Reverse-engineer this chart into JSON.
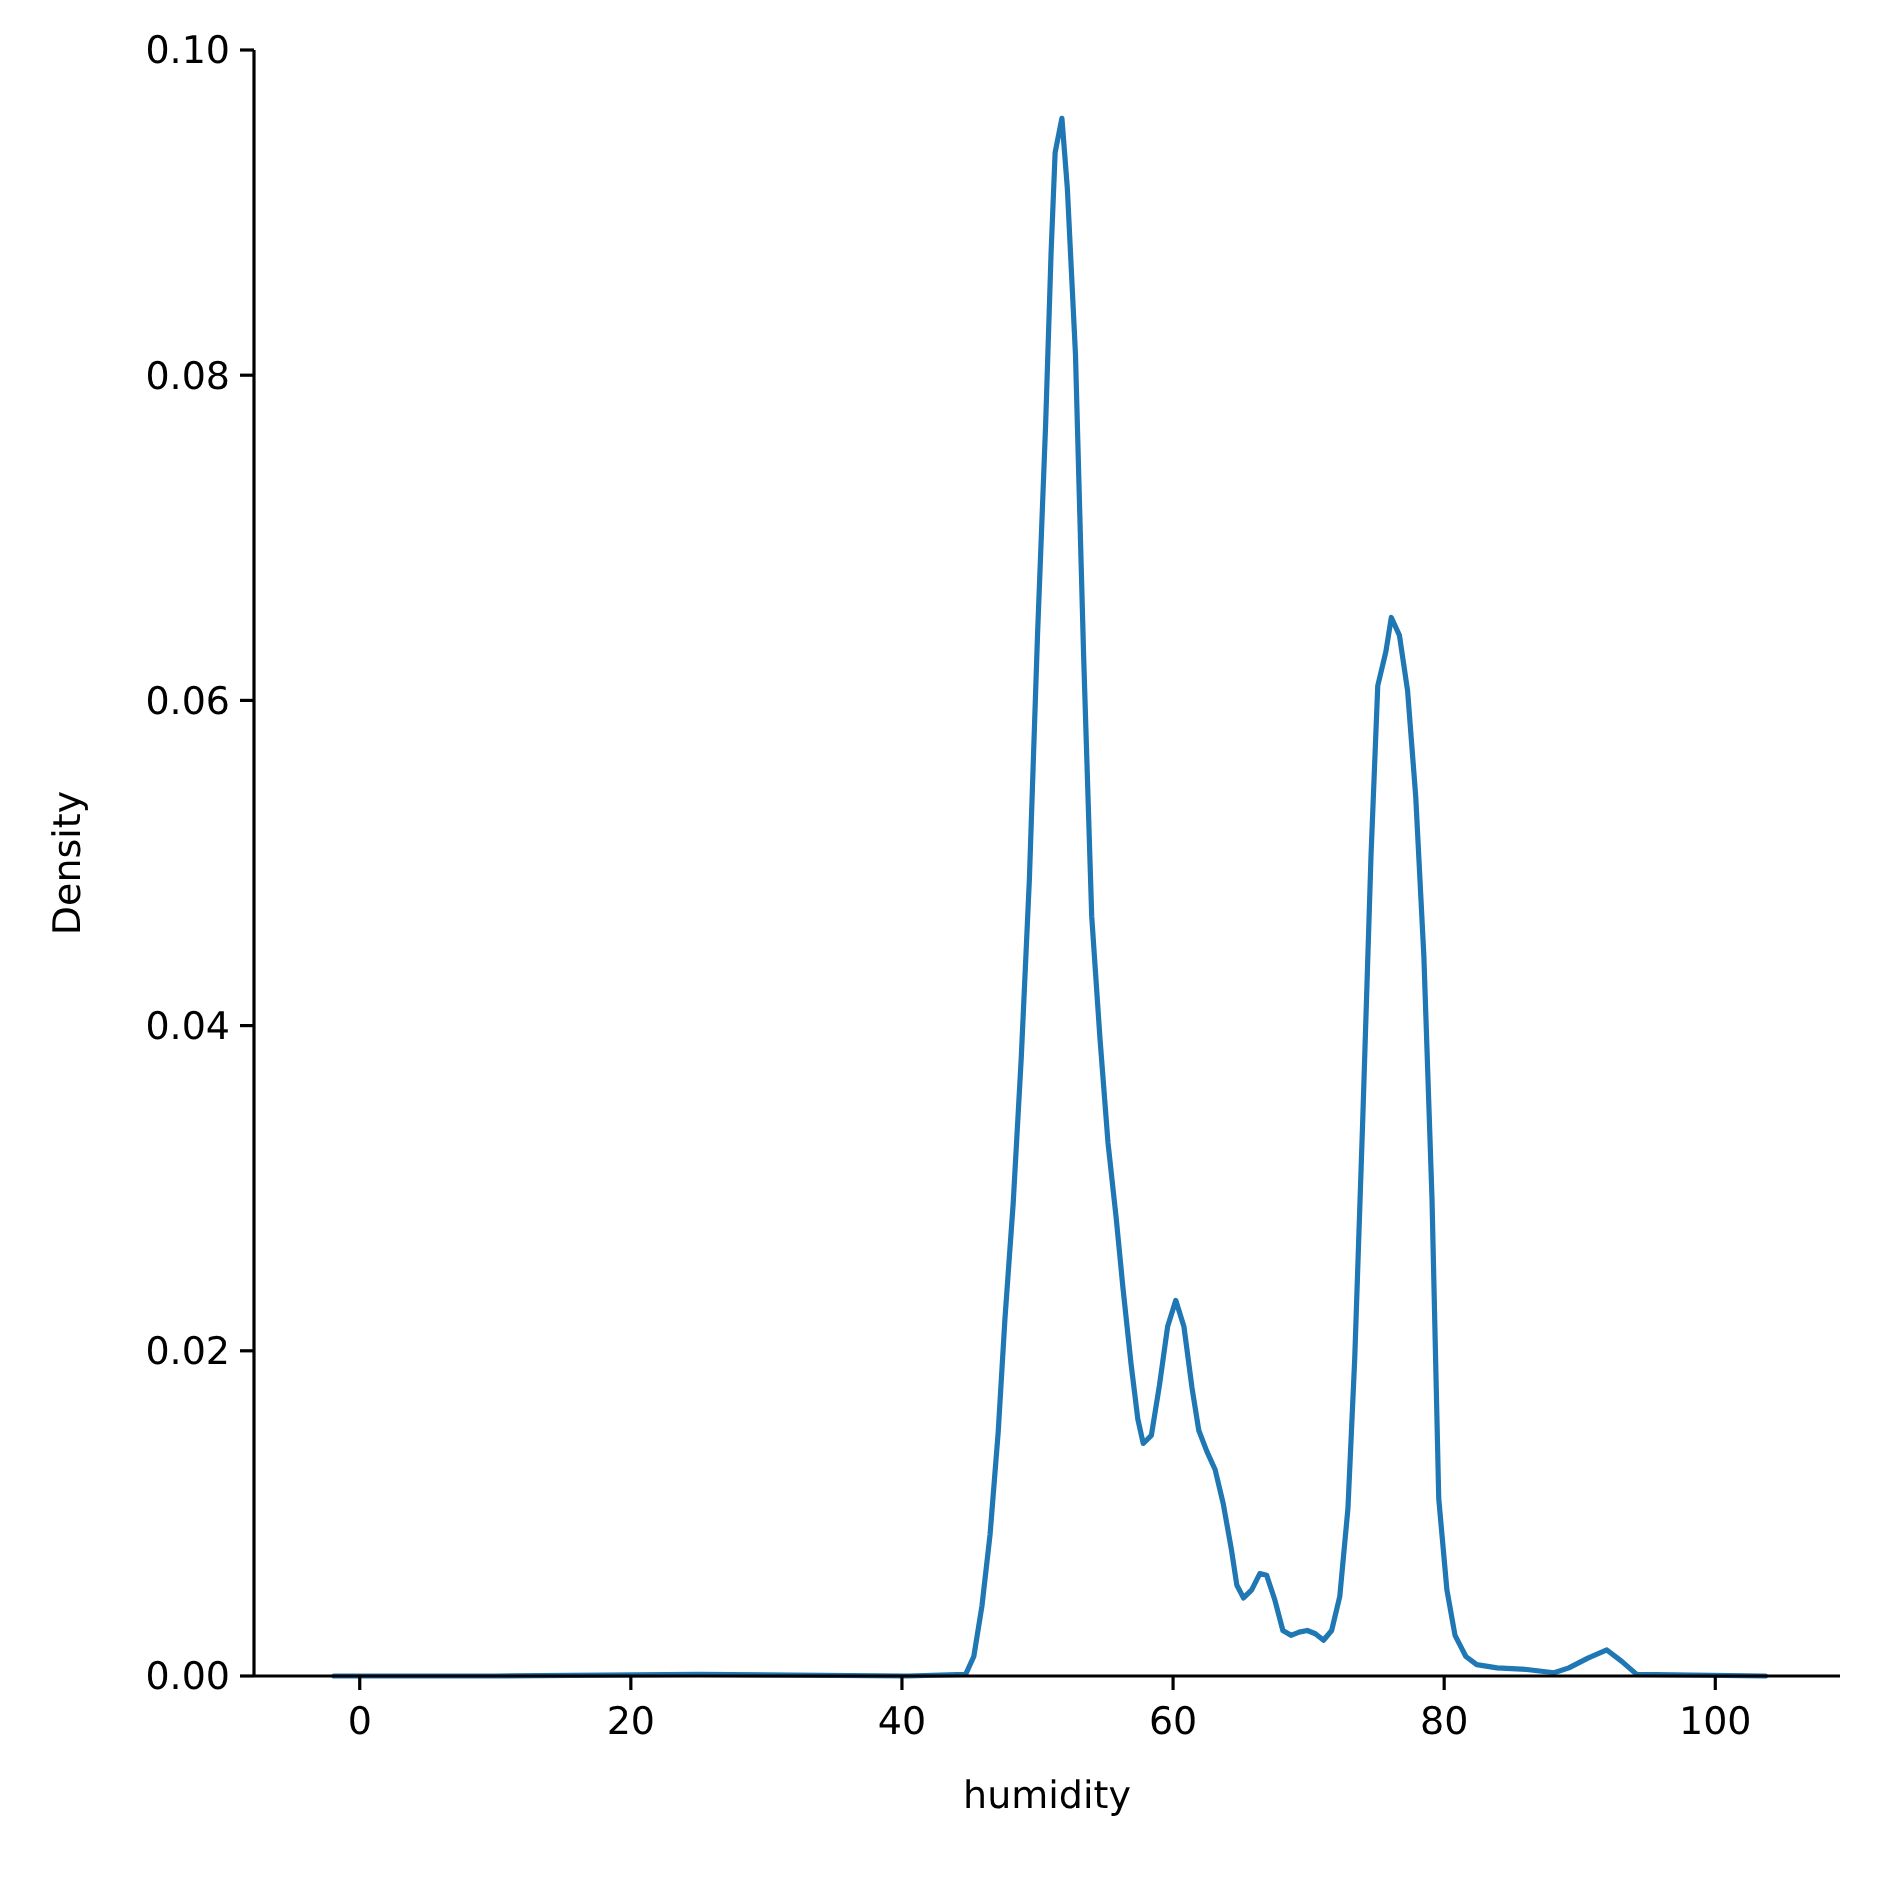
{
  "chart_data": {
    "type": "line",
    "xlabel": "humidity",
    "ylabel": "Density",
    "xlim": [
      -7.8,
      109.2
    ],
    "ylim": [
      0,
      0.1
    ],
    "xticks": [
      0,
      20,
      40,
      60,
      80,
      100
    ],
    "yticks": [
      {
        "value": 0,
        "label": "0.00"
      },
      {
        "value": 0.02,
        "label": "0.02"
      },
      {
        "value": 0.04,
        "label": "0.04"
      },
      {
        "value": 0.06,
        "label": "0.06"
      },
      {
        "value": 0.08,
        "label": "0.08"
      },
      {
        "value": 0.1,
        "label": "0.10"
      }
    ],
    "grid": false,
    "marker": "none",
    "line_style": "solid",
    "series": [
      {
        "color": "#1f77b4",
        "x": [
          -1.9,
          10,
          25,
          40.4,
          44.7,
          45.3,
          45.9,
          46.5,
          47.1,
          47.6,
          48.2,
          48.8,
          49.4,
          50.0,
          50.6,
          51.0,
          51.3,
          51.8,
          52.2,
          52.8,
          53.4,
          54.0,
          54.6,
          55.2,
          55.8,
          56.3,
          56.9,
          57.4,
          57.8,
          58.4,
          59.0,
          59.6,
          60.2,
          60.8,
          61.4,
          61.9,
          62.5,
          63.1,
          63.7,
          64.3,
          64.7,
          65.2,
          65.8,
          66.4,
          66.9,
          67.5,
          68.1,
          68.7,
          69.3,
          69.9,
          70.5,
          71.1,
          71.7,
          72.3,
          72.9,
          73.4,
          74.0,
          74.6,
          75.1,
          75.7,
          76.1,
          76.7,
          77.3,
          77.9,
          78.5,
          79.1,
          79.6,
          80.2,
          80.8,
          81.6,
          82.4,
          83.9,
          86.1,
          88.1,
          89.2,
          90.6,
          92.0,
          93.1,
          94.2,
          103.7
        ],
        "values": [
          0,
          0,
          0.0001,
          0,
          0.0001,
          0.0012,
          0.0043,
          0.0087,
          0.015,
          0.022,
          0.029,
          0.038,
          0.049,
          0.064,
          0.077,
          0.0875,
          0.0937,
          0.0958,
          0.0915,
          0.0813,
          0.0628,
          0.0467,
          0.0393,
          0.0328,
          0.0282,
          0.0239,
          0.0192,
          0.0158,
          0.0143,
          0.0148,
          0.0179,
          0.0215,
          0.0231,
          0.0215,
          0.0177,
          0.0151,
          0.0138,
          0.0127,
          0.0106,
          0.0078,
          0.0056,
          0.0048,
          0.0053,
          0.0063,
          0.0062,
          0.0047,
          0.0028,
          0.0025,
          0.0027,
          0.0028,
          0.0026,
          0.0022,
          0.0028,
          0.0049,
          0.0103,
          0.0195,
          0.0344,
          0.0504,
          0.0609,
          0.063,
          0.0651,
          0.064,
          0.0606,
          0.0541,
          0.0443,
          0.0294,
          0.0109,
          0.0053,
          0.0025,
          0.0012,
          0.0007,
          0.0005,
          0.0004,
          0.0002,
          0.0005,
          0.0011,
          0.0016,
          0.0009,
          0.0001,
          0
        ]
      }
    ]
  }
}
